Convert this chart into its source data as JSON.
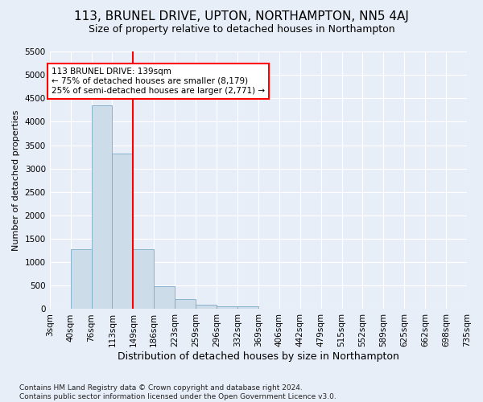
{
  "title1": "113, BRUNEL DRIVE, UPTON, NORTHAMPTON, NN5 4AJ",
  "title2": "Size of property relative to detached houses in Northampton",
  "xlabel": "Distribution of detached houses by size in Northampton",
  "ylabel": "Number of detached properties",
  "footnote": "Contains HM Land Registry data © Crown copyright and database right 2024.\nContains public sector information licensed under the Open Government Licence v3.0.",
  "bin_labels": [
    "3sqm",
    "40sqm",
    "76sqm",
    "113sqm",
    "149sqm",
    "186sqm",
    "223sqm",
    "259sqm",
    "296sqm",
    "332sqm",
    "369sqm",
    "406sqm",
    "442sqm",
    "479sqm",
    "515sqm",
    "552sqm",
    "589sqm",
    "625sqm",
    "662sqm",
    "698sqm",
    "735sqm"
  ],
  "bar_values": [
    0,
    1270,
    4350,
    3320,
    1270,
    490,
    215,
    95,
    60,
    55,
    0,
    0,
    0,
    0,
    0,
    0,
    0,
    0,
    0,
    0
  ],
  "bar_color": "#ccdce8",
  "bar_edge_color": "#7aaac8",
  "vline_color": "red",
  "vline_x_idx": 4,
  "annotation_text": "113 BRUNEL DRIVE: 139sqm\n← 75% of detached houses are smaller (8,179)\n25% of semi-detached houses are larger (2,771) →",
  "annotation_box_color": "white",
  "annotation_box_edge_color": "red",
  "ylim": [
    0,
    5500
  ],
  "yticks": [
    0,
    500,
    1000,
    1500,
    2000,
    2500,
    3000,
    3500,
    4000,
    4500,
    5000,
    5500
  ],
  "bg_color": "#e8eef8",
  "plot_bg_color": "#e8eef8",
  "grid_color": "white",
  "title1_fontsize": 11,
  "title2_fontsize": 9,
  "xlabel_fontsize": 9,
  "ylabel_fontsize": 8,
  "tick_fontsize": 7.5,
  "footnote_fontsize": 6.5,
  "annotation_fontsize": 7.5
}
